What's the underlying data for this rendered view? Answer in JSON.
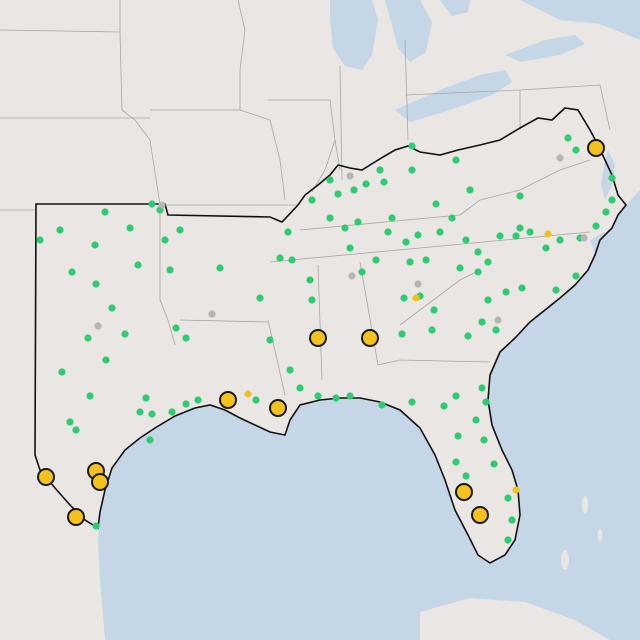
{
  "map": {
    "colors": {
      "land": "#e9e6e3",
      "water": "#c5d6e6",
      "state_border": "#a9a6a3",
      "region_border": "#111111",
      "station_ok": "#2ecc71",
      "station_inactive": "#b5b5b5",
      "station_small_warn": "#f0c21b",
      "station_alert_fill": "#f5c21b",
      "station_alert_stroke": "#1a1a1a"
    },
    "station_states": [
      "ok",
      "inactive",
      "small-warning",
      "alert"
    ]
  }
}
